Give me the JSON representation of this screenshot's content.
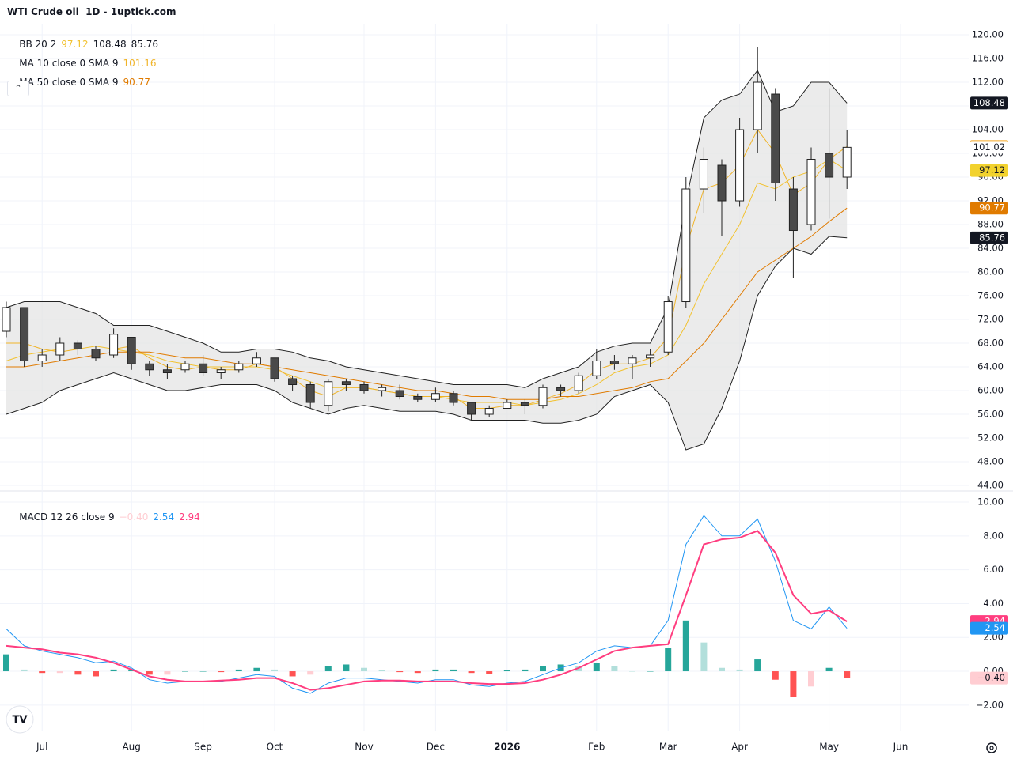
{
  "chart_data": {
    "type": "candlestick",
    "title": "WTI Crude oil  1D - 1uptick.com",
    "categories": [
      null,
      null,
      "Jul",
      null,
      null,
      null,
      null,
      "Aug",
      null,
      null,
      null,
      "Sep",
      null,
      null,
      null,
      "Oct",
      null,
      null,
      null,
      null,
      "Nov",
      null,
      null,
      null,
      "Dec",
      null,
      null,
      null,
      "2026",
      null,
      null,
      null,
      null,
      "Feb",
      null,
      null,
      null,
      "Mar",
      null,
      null,
      null,
      "Apr",
      null,
      null,
      null,
      null,
      "May",
      null,
      null,
      null,
      "Jun"
    ],
    "open": [
      70,
      74,
      65,
      66,
      68,
      67,
      66,
      69,
      64.5,
      63.5,
      63.5,
      64.5,
      63,
      63.5,
      64.5,
      65.5,
      62,
      61,
      57.5,
      61.5,
      61,
      60,
      60,
      59,
      58.5,
      59.5,
      58,
      56,
      57,
      58,
      57.5,
      60.5,
      60,
      62.5,
      65,
      64.5,
      65.5,
      66.5,
      75,
      94,
      98,
      92,
      104,
      110,
      94,
      88,
      100,
      96,
      null,
      null,
      null
    ],
    "high": [
      75,
      74,
      67,
      69,
      68.5,
      67.5,
      70.5,
      69,
      65,
      64.5,
      65,
      66,
      64,
      65,
      66.5,
      65.5,
      62.5,
      61.5,
      62,
      62,
      61.5,
      61,
      61,
      59.5,
      60.5,
      60,
      58,
      57.5,
      58.5,
      58.5,
      61,
      61,
      63,
      67,
      66,
      66,
      67,
      76,
      96,
      101,
      99,
      106,
      118,
      111,
      96,
      101,
      111,
      104,
      null,
      null,
      null
    ],
    "low": [
      69,
      64,
      64,
      65,
      66,
      65,
      65.5,
      63.5,
      62.5,
      62,
      63,
      62.5,
      62,
      63,
      64,
      61.5,
      60,
      57,
      56.5,
      60,
      59.5,
      59,
      58.5,
      58,
      58,
      57.5,
      55,
      55.5,
      57,
      56,
      57,
      59,
      59.5,
      62,
      63.5,
      62,
      64,
      66,
      74,
      90,
      86,
      91,
      100,
      92,
      79,
      87,
      89,
      94,
      null,
      null,
      null
    ],
    "close": [
      74,
      65,
      66,
      68,
      67,
      65.5,
      69.5,
      64.5,
      63.5,
      63,
      64.5,
      63,
      63.5,
      64.5,
      65.5,
      62,
      61,
      58,
      61.5,
      61,
      60,
      60.5,
      59,
      58.5,
      59.5,
      58,
      56,
      57,
      58,
      57.5,
      60.5,
      60,
      62.5,
      65,
      64.5,
      65.5,
      66,
      75,
      94,
      99,
      92,
      104,
      112,
      95,
      87,
      99,
      96,
      101.02,
      null,
      null,
      null
    ],
    "up_color": "#ffffff",
    "down_color": "#4a4a4a",
    "ylim": [
      43.2,
      121.87
    ],
    "yticks": [
      {
        "value": 44,
        "label": "44.00"
      },
      {
        "value": 48,
        "label": "48.00"
      },
      {
        "value": 52,
        "label": "52.00"
      },
      {
        "value": 56,
        "label": "56.00"
      },
      {
        "value": 60,
        "label": "60.00"
      },
      {
        "value": 64,
        "label": "64.00"
      },
      {
        "value": 68,
        "label": "68.00"
      },
      {
        "value": 72,
        "label": "72.00"
      },
      {
        "value": 76,
        "label": "76.00"
      },
      {
        "value": 80,
        "label": "80.00"
      },
      {
        "value": 84,
        "label": "84.00"
      },
      {
        "value": 88,
        "label": "88.00"
      },
      {
        "value": 92,
        "label": "92.00"
      },
      {
        "value": 96,
        "label": "96.00"
      },
      {
        "value": 100,
        "label": "100.00"
      },
      {
        "value": 104,
        "label": "104.00"
      },
      {
        "value": 108,
        "label": "108.00"
      },
      {
        "value": 112,
        "label": "112.00"
      },
      {
        "value": 116,
        "label": "116.00"
      },
      {
        "value": 120,
        "label": "120.00"
      }
    ],
    "grid": true,
    "bb": {
      "label": "BB 20 2",
      "color": "#222222",
      "fill": "#e4e4e4",
      "basis": {
        "color": "#f2c230",
        "values": [
          65,
          66,
          66.5,
          67,
          67,
          67.5,
          67,
          66.5,
          66,
          65,
          64.5,
          64,
          64,
          64,
          64,
          63.5,
          62.5,
          61.5,
          60.5,
          60.5,
          60.5,
          60,
          59.5,
          59,
          59,
          58.5,
          58,
          58,
          58,
          57.5,
          58,
          58.5,
          59.5,
          61,
          63,
          64,
          64.5,
          66,
          71,
          78,
          83,
          88,
          95,
          94,
          96,
          97,
          99,
          97.12,
          null,
          null,
          null
        ]
      },
      "upper": {
        "values": [
          74,
          75,
          75,
          75,
          74,
          73,
          71,
          71,
          71,
          70,
          69,
          68,
          66.5,
          66.5,
          67,
          67,
          66.5,
          65.5,
          65,
          64,
          63.5,
          63,
          62.5,
          62,
          61.5,
          61,
          61,
          61,
          61,
          60.5,
          62,
          63,
          64,
          66.5,
          67.5,
          68,
          68,
          74,
          92,
          106,
          109,
          110,
          114,
          107,
          108,
          112,
          112,
          108.48,
          null,
          null,
          null
        ]
      },
      "lower": {
        "values": [
          56,
          57,
          58,
          60,
          61,
          62,
          63,
          62,
          61,
          60,
          60,
          60.5,
          61,
          61,
          61,
          60,
          58,
          57,
          56,
          57,
          57.5,
          57,
          56.5,
          56.5,
          56.5,
          56,
          55,
          55,
          55,
          55,
          54.5,
          54.5,
          55,
          56,
          59,
          60,
          61,
          58,
          50,
          51,
          57,
          65,
          76,
          81,
          84,
          83,
          86,
          85.76,
          null,
          null,
          null
        ]
      }
    },
    "ma": [
      {
        "label": "MA 10 close 0 SMA 9",
        "color": "#f0b429",
        "values": [
          68,
          68,
          67,
          66.5,
          67,
          67,
          67,
          67.5,
          65.5,
          64,
          63.5,
          64,
          63.5,
          63.5,
          64.5,
          64,
          62,
          60,
          59,
          60.5,
          60.5,
          60,
          59.5,
          59,
          59,
          59,
          57,
          57,
          57.5,
          57.5,
          58.5,
          59.5,
          61,
          63.5,
          64.5,
          64.5,
          65.5,
          69,
          84,
          94,
          95,
          98,
          104,
          100,
          93,
          95,
          99,
          101.16,
          null,
          null,
          null
        ]
      },
      {
        "label": "MA 50 close 0 SMA 9",
        "color": "#e07b00",
        "values": [
          64,
          64,
          64.5,
          65,
          65.5,
          66,
          66.5,
          66.5,
          66.5,
          66,
          65.5,
          65.5,
          65,
          64.5,
          64.5,
          64,
          63.5,
          63,
          62.5,
          62,
          61.5,
          61,
          60.5,
          60,
          60,
          59.5,
          59,
          59,
          58.5,
          58.5,
          58.5,
          59,
          59,
          59.5,
          60,
          60.5,
          61.5,
          62,
          65,
          68,
          72,
          76,
          80,
          82,
          84,
          86,
          88.5,
          90.77,
          null,
          null,
          null
        ]
      }
    ],
    "macd": {
      "label": "MACD 12 26 close 9",
      "ylim": [
        -3.55,
        10.61
      ],
      "yticks": [
        {
          "value": -2,
          "label": "−2.00"
        },
        {
          "value": 0,
          "label": "0.00"
        },
        {
          "value": 2,
          "label": "2.00"
        },
        {
          "value": 4,
          "label": "4.00"
        },
        {
          "value": 6,
          "label": "6.00"
        },
        {
          "value": 8,
          "label": "8.00"
        },
        {
          "value": 10,
          "label": "10.00"
        }
      ],
      "macd": {
        "color": "#2196f3",
        "values": [
          2.5,
          1.5,
          1.2,
          1,
          0.8,
          0.5,
          0.6,
          0.2,
          -0.5,
          -0.7,
          -0.6,
          -0.6,
          -0.6,
          -0.4,
          -0.2,
          -0.3,
          -1,
          -1.3,
          -0.7,
          -0.4,
          -0.4,
          -0.5,
          -0.6,
          -0.7,
          -0.5,
          -0.5,
          -0.8,
          -0.9,
          -0.7,
          -0.6,
          -0.2,
          0.2,
          0.5,
          1.2,
          1.5,
          1.4,
          1.5,
          3,
          7.5,
          9.2,
          8,
          8,
          9,
          6.5,
          3,
          2.5,
          3.8,
          2.54,
          null,
          null,
          null
        ]
      },
      "signal": {
        "color": "#ff3d7f",
        "values": [
          1.5,
          1.4,
          1.3,
          1.1,
          1,
          0.8,
          0.5,
          0.1,
          -0.3,
          -0.5,
          -0.6,
          -0.6,
          -0.55,
          -0.5,
          -0.4,
          -0.4,
          -0.7,
          -1.1,
          -1,
          -0.8,
          -0.6,
          -0.55,
          -0.55,
          -0.6,
          -0.6,
          -0.6,
          -0.7,
          -0.75,
          -0.75,
          -0.7,
          -0.5,
          -0.2,
          0.2,
          0.7,
          1.2,
          1.4,
          1.5,
          1.6,
          4.5,
          7.5,
          7.8,
          7.9,
          8.3,
          7,
          4.5,
          3.4,
          3.6,
          2.94,
          null,
          null,
          null
        ]
      },
      "histogram": {
        "colors": [
          "#26a69a",
          "#b2dfdb",
          "#ff5252",
          "#ffcdd2"
        ],
        "values": [
          1,
          0.1,
          -0.1,
          -0.1,
          -0.2,
          -0.3,
          0.1,
          0.1,
          -0.2,
          -0.2,
          0,
          0,
          -0.05,
          0.1,
          0.2,
          0.1,
          -0.3,
          -0.2,
          0.3,
          0.4,
          0.2,
          0.05,
          -0.05,
          -0.1,
          0.1,
          0.1,
          -0.1,
          -0.15,
          0.05,
          0.1,
          0.3,
          0.4,
          0.3,
          0.5,
          0.3,
          0,
          0,
          1.4,
          3,
          1.7,
          0.2,
          0.1,
          0.7,
          -0.5,
          -1.5,
          -0.9,
          0.2,
          -0.4,
          null,
          null,
          null
        ],
        "value_labels": [
          null,
          null,
          null,
          null,
          null,
          null,
          null,
          null,
          null,
          null,
          null,
          null,
          null,
          null,
          null,
          null,
          null,
          null,
          null,
          null,
          null,
          null,
          null,
          null,
          null,
          null,
          null,
          null,
          null,
          null,
          null,
          null,
          null,
          null,
          null,
          null,
          null,
          null,
          null,
          null,
          null,
          null,
          null,
          null,
          null,
          null,
          null,
          "−0.40",
          null,
          null,
          null
        ]
      }
    }
  }
}
